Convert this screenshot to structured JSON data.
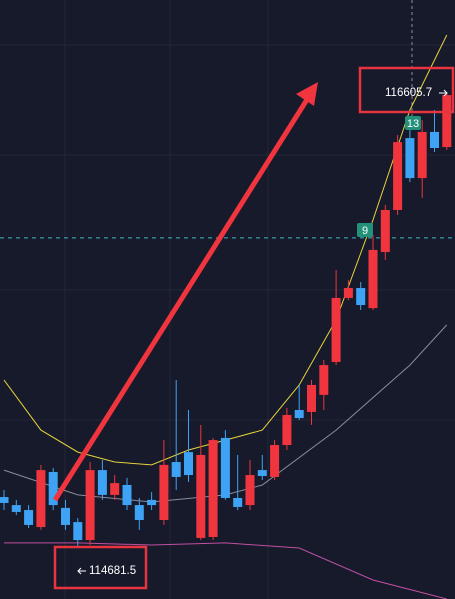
{
  "chart_data": {
    "type": "candlestick",
    "ylim": [
      114465.8,
      116999
    ],
    "up_color": "#f0353f",
    "down_color": "#3fa3f5",
    "open": [
      114897,
      114863,
      114842,
      114770,
      115003,
      114851,
      114791,
      114715,
      115011,
      114906,
      114948,
      114863,
      114885,
      114800,
      115045,
      115087,
      114724,
      114728,
      115147,
      114893,
      114863,
      115011,
      114982,
      115117,
      115265,
      115257,
      115329,
      115468,
      115739,
      115781,
      115696,
      115933,
      116111,
      116415,
      116246,
      116441,
      116377
    ],
    "high": [
      114927,
      114885,
      114863,
      115033,
      115020,
      114885,
      114808,
      115045,
      115054,
      114990,
      114978,
      114893,
      114918,
      115138,
      115392,
      115265,
      115202,
      115147,
      115180,
      115075,
      115054,
      115075,
      115138,
      115274,
      115371,
      115392,
      115477,
      115857,
      115815,
      115806,
      116005,
      116132,
      116428,
      116491,
      116491,
      116534,
      116605.7
    ],
    "low": [
      114842,
      114821,
      114766,
      114758,
      114842,
      114758,
      114681.5,
      114694,
      114885,
      114885,
      114842,
      114758,
      114842,
      114779,
      114927,
      114961,
      114715,
      114715,
      114885,
      114842,
      114842,
      114969,
      114969,
      115096,
      115223,
      115202,
      115265,
      115455,
      115730,
      115688,
      115688,
      115900,
      116090,
      116229,
      116162,
      116356,
      116365
    ],
    "close": [
      114872,
      114834,
      114779,
      115011,
      114863,
      114779,
      114715,
      115011,
      114906,
      114956,
      114863,
      114800,
      114863,
      115033,
      114982,
      114990,
      115075,
      115138,
      114893,
      114855,
      114990,
      114986,
      115117,
      115244,
      115231,
      115371,
      115455,
      115739,
      115781,
      115709,
      115942,
      116111,
      116398,
      116246,
      116441,
      116373,
      116597
    ],
    "overlays": [
      {
        "color": "#e6d23a",
        "x": [
          0,
          3,
          6,
          9,
          12,
          15,
          18,
          21,
          24,
          27,
          30,
          33,
          36
        ],
        "values": [
          115392,
          115180,
          115087,
          115045,
          115033,
          115096,
          115138,
          115180,
          115371,
          115646,
          116069,
          116534,
          116851
        ]
      },
      {
        "color": "#8a8c99",
        "x": [
          0,
          6,
          12,
          18,
          21,
          27,
          33,
          36
        ],
        "values": [
          115011,
          114906,
          114876,
          114906,
          114948,
          115180,
          115455,
          115625
        ]
      },
      {
        "color": "#c04fa0",
        "x": [
          0,
          6,
          12,
          18,
          24,
          30,
          36
        ],
        "values": [
          114703,
          114703,
          114694,
          114703,
          114681.5,
          114546,
          114466
        ]
      }
    ],
    "reference_line": 115993,
    "high_label": {
      "value": 116605.7,
      "label": "116605.7"
    },
    "low_label": {
      "value": 114681.5,
      "label": "114681.5"
    },
    "markers": [
      "9",
      "13"
    ]
  }
}
